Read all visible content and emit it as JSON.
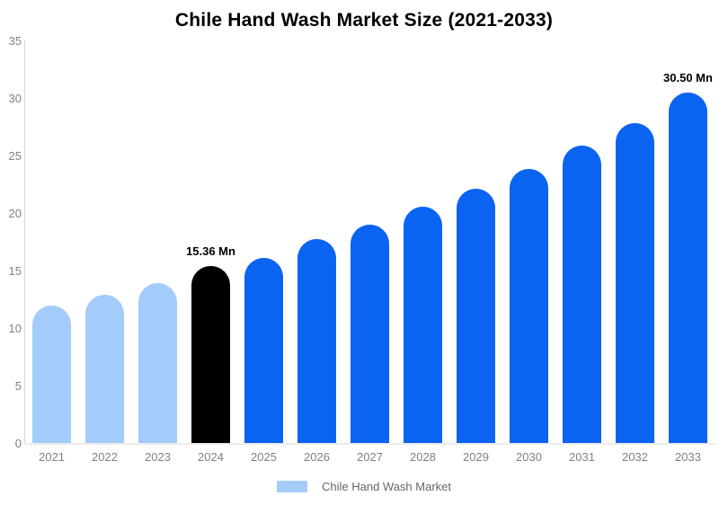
{
  "title": "Chile Hand Wash Market Size (2021-2033)",
  "colors": {
    "light_blue": "#A3CCFA",
    "primary_blue": "#0B63F2",
    "highlight_black": "#000000",
    "axis_line": "#d9d9d9",
    "tick_text": "#808080",
    "legend_text": "#666666"
  },
  "chart_data": {
    "type": "bar",
    "title": "Chile Hand Wash Market Size (2021-2033)",
    "categories": [
      "2021",
      "2022",
      "2023",
      "2024",
      "2025",
      "2026",
      "2027",
      "2028",
      "2029",
      "2030",
      "2031",
      "2032",
      "2033"
    ],
    "values": [
      11.95,
      12.9,
      13.9,
      15.36,
      16.1,
      17.7,
      19.0,
      20.55,
      22.1,
      23.85,
      25.85,
      27.8,
      30.5
    ],
    "bar_colors": [
      "#A3CCFA",
      "#A3CCFA",
      "#A3CCFA",
      "#000000",
      "#0B63F2",
      "#0B63F2",
      "#0B63F2",
      "#0B63F2",
      "#0B63F2",
      "#0B63F2",
      "#0B63F2",
      "#0B63F2",
      "#0B63F2"
    ],
    "annotations": [
      {
        "category": "2024",
        "text": "15.36 Mn"
      },
      {
        "category": "2033",
        "text": "30.50 Mn"
      }
    ],
    "yticks": [
      0,
      5,
      10,
      15,
      20,
      25,
      30,
      35
    ],
    "ylim": [
      0,
      35
    ],
    "xlabel": "",
    "ylabel": "",
    "grid": false,
    "legend_position": "bottom"
  },
  "legend": {
    "items": [
      {
        "label": "Chile Hand Wash Market",
        "color": "#A3CCFA"
      }
    ]
  }
}
